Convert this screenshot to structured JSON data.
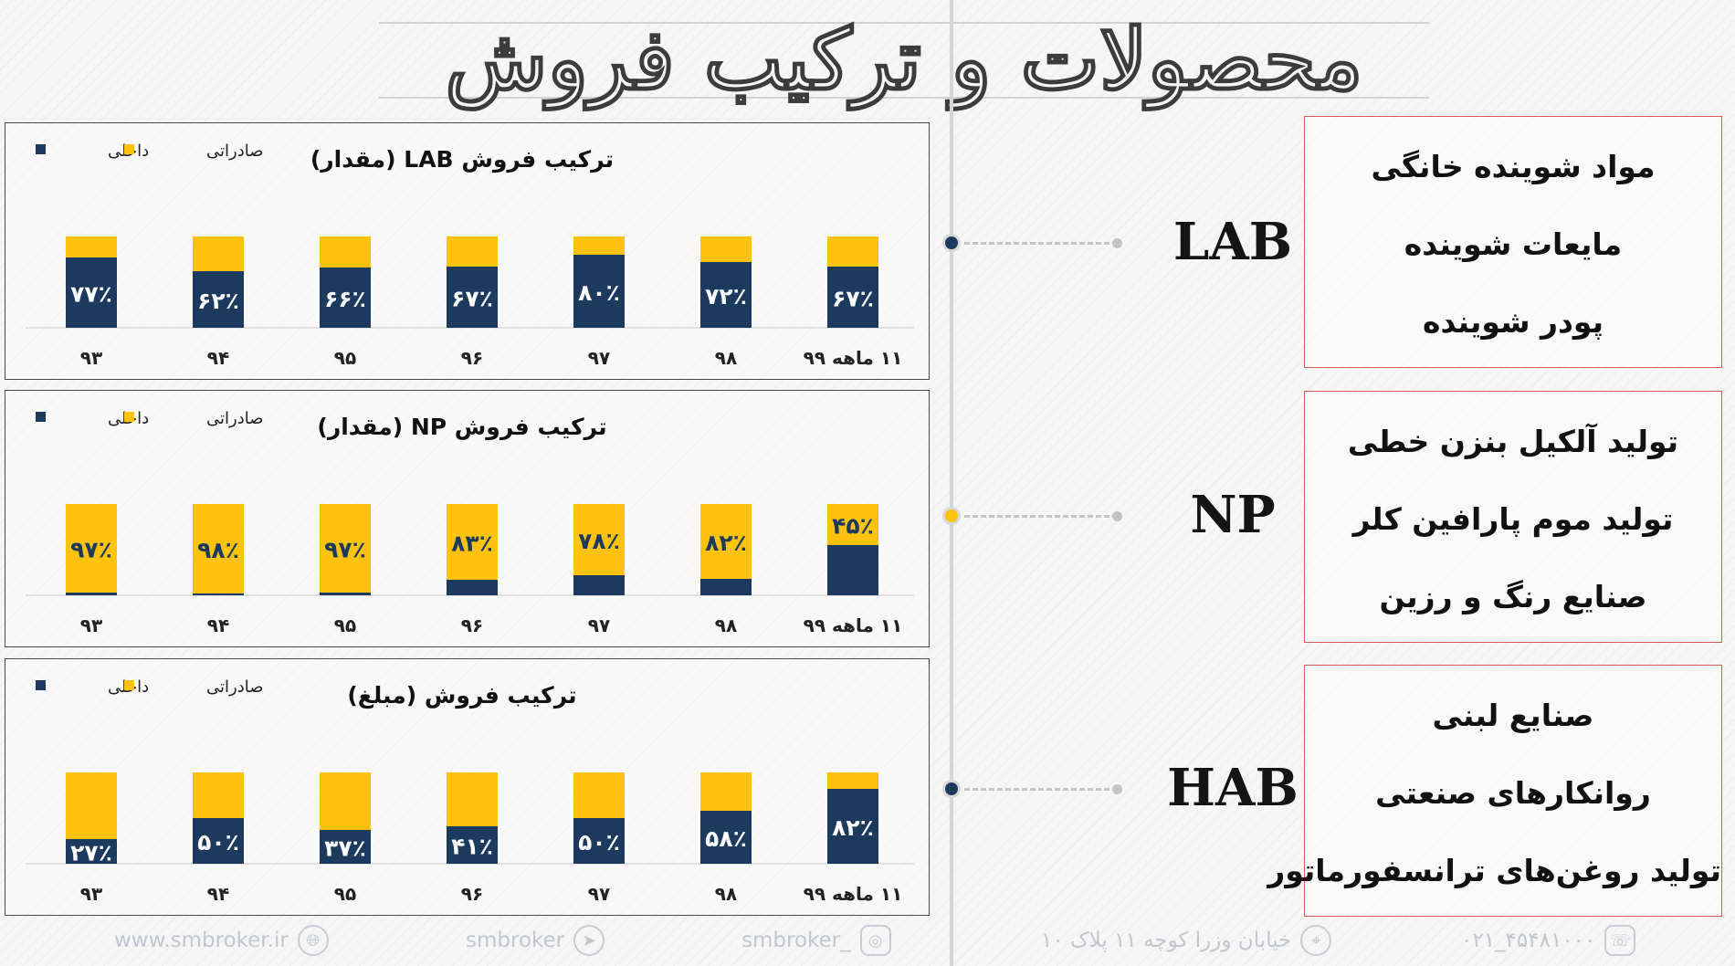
{
  "page_title": "محصولات و ترکیب فروش",
  "chart_data": [
    {
      "type": "bar",
      "title": "ترکیب فروش LAB (مقدار)",
      "categories": [
        "۹۳",
        "۹۴",
        "۹۵",
        "۹۶",
        "۹۷",
        "۹۸",
        "۱۱ ماهه ۹۹"
      ],
      "series": [
        {
          "name": "داخلی",
          "values": [
            77,
            62,
            66,
            67,
            80,
            72,
            67
          ],
          "labels": [
            "۷۷٪",
            "۶۲٪",
            "۶۶٪",
            "۶۷٪",
            "۸۰٪",
            "۷۲٪",
            "۶۷٪"
          ]
        },
        {
          "name": "صادراتی",
          "values": [
            23,
            38,
            34,
            33,
            20,
            28,
            33
          ]
        }
      ],
      "stacked": true,
      "ylim": [
        0,
        100
      ],
      "legend": "top-left",
      "grid": false
    },
    {
      "type": "bar",
      "title": "ترکیب فروش NP (مقدار)",
      "categories": [
        "۹۳",
        "۹۴",
        "۹۵",
        "۹۶",
        "۹۷",
        "۹۸",
        "۱۱ ماهه ۹۹"
      ],
      "series": [
        {
          "name": "داخلی",
          "values": [
            3,
            2,
            3,
            17,
            22,
            18,
            55
          ]
        },
        {
          "name": "صادراتی",
          "values": [
            97,
            98,
            97,
            83,
            78,
            82,
            45
          ],
          "labels": [
            "۹۷٪",
            "۹۸٪",
            "۹۷٪",
            "۸۳٪",
            "۷۸٪",
            "۸۲٪",
            "۴۵٪"
          ]
        }
      ],
      "stacked": true,
      "ylim": [
        0,
        100
      ],
      "legend": "top-left",
      "grid": false
    },
    {
      "type": "bar",
      "title": "ترکیب فروش (مبلغ)",
      "categories": [
        "۹۳",
        "۹۴",
        "۹۵",
        "۹۶",
        "۹۷",
        "۹۸",
        "۱۱ ماهه ۹۹"
      ],
      "series": [
        {
          "name": "داخلی",
          "values": [
            27,
            50,
            37,
            41,
            50,
            58,
            82
          ],
          "labels": [
            "۲۷٪",
            "۵۰٪",
            "۳۷٪",
            "۴۱٪",
            "۵۰٪",
            "۵۸٪",
            "۸۲٪"
          ]
        },
        {
          "name": "صادراتی",
          "values": [
            73,
            50,
            63,
            59,
            50,
            42,
            18
          ]
        }
      ],
      "stacked": true,
      "ylim": [
        0,
        100
      ],
      "legend": "top-left",
      "grid": false
    }
  ],
  "colors": {
    "domestic": "#1c3a5e",
    "export": "#ffc20e",
    "box_border": "#e05a5a"
  },
  "segments": [
    {
      "label": "LAB",
      "node_color": "navy",
      "products": [
        "مواد شوینده خانگی",
        "مایعات شوینده",
        "پودر شوینده"
      ]
    },
    {
      "label": "NP",
      "node_color": "yellow",
      "products": [
        "تولید آلکیل بنزن خطی",
        "تولید موم پارافین کلر",
        "صنایع رنگ و رزین"
      ]
    },
    {
      "label": "HAB",
      "node_color": "navy",
      "products": [
        "صنایع لبنی",
        "روانکارهای صنعتی",
        "تولید روغن‌های ترانسفورماتور"
      ]
    }
  ],
  "footer": {
    "website": "www.smbroker.ir",
    "telegram": "smbroker",
    "instagram": "smbroker_",
    "address": "خیابان وزرا کوچه ۱۱ پلاک ۱۰",
    "phone": "۰۲۱_۴۵۴۸۱۰۰۰",
    "icons": [
      "globe-icon",
      "telegram-icon",
      "instagram-icon",
      "location-pin-icon",
      "telephone-icon"
    ]
  }
}
